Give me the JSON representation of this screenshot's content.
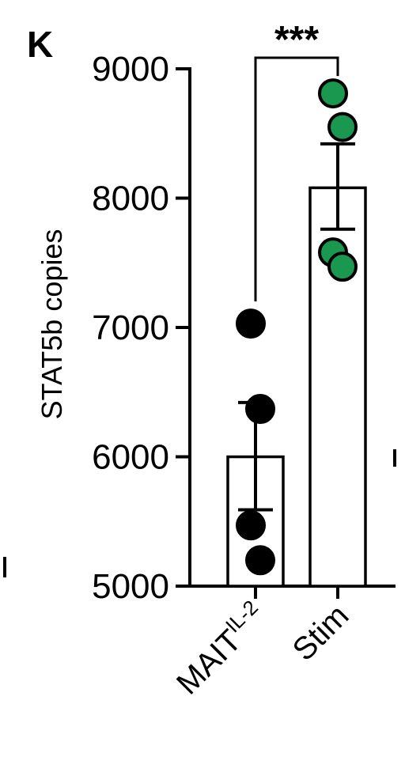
{
  "panel_label": "K",
  "chart_data": {
    "type": "bar",
    "title": "",
    "xlabel": "",
    "ylabel": "STAT5b copies",
    "ylim": [
      5000,
      9000
    ],
    "yticks": [
      "5000",
      "6000",
      "7000",
      "8000",
      "9000"
    ],
    "categories": [
      {
        "main": "MAIT",
        "sup": "IL-2"
      },
      {
        "main": "Stim",
        "sup": ""
      }
    ],
    "bars": [
      {
        "mean": 6000,
        "err_low": 5590,
        "err_high": 6420,
        "points": [
          7030,
          6370,
          5470,
          5200
        ],
        "color": "#000000",
        "edge": "#000000"
      },
      {
        "mean": 8080,
        "err_low": 7760,
        "err_high": 8420,
        "points": [
          8810,
          8550,
          7580,
          7470
        ],
        "color": "#1a9850",
        "edge": "#000000"
      }
    ],
    "significance": {
      "label": "***",
      "between": [
        0,
        1
      ]
    }
  }
}
